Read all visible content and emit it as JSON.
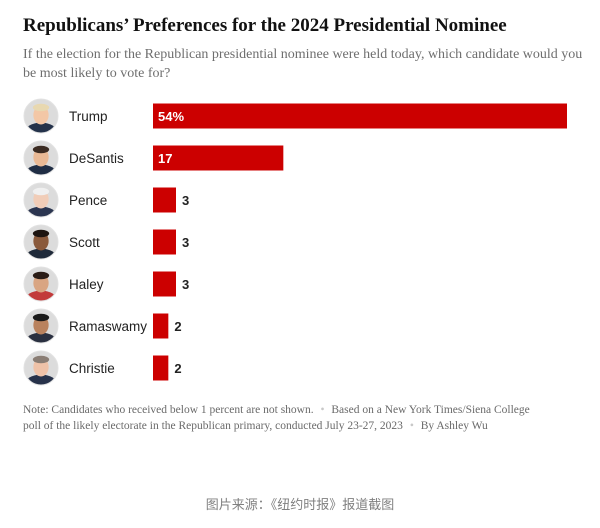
{
  "chart_data": {
    "type": "bar",
    "orientation": "horizontal",
    "title": "Republicans’ Preferences for the 2024 Presidential Nominee",
    "subtitle": "If the election for the Republican presidential nominee were held today, which candidate would you be most likely to vote for?",
    "categories": [
      "Trump",
      "DeSantis",
      "Pence",
      "Scott",
      "Haley",
      "Ramaswamy",
      "Christie"
    ],
    "values": [
      54,
      17,
      3,
      3,
      3,
      2,
      2
    ],
    "value_labels": [
      "54%",
      "17",
      "3",
      "3",
      "3",
      "2",
      "2"
    ],
    "xlim": [
      0,
      54
    ],
    "grid": false,
    "legend": "none",
    "bar_color": "#cc0000",
    "avatar_icons": [
      "trump-portrait-icon",
      "desantis-portrait-icon",
      "pence-portrait-icon",
      "scott-portrait-icon",
      "haley-portrait-icon",
      "ramaswamy-portrait-icon",
      "christie-portrait-icon"
    ]
  },
  "notes": {
    "note1": "Note: Candidates who received below 1 percent are not shown.",
    "separator": "•",
    "note2": "Based on a New York Times/Siena College poll of the likely electorate in the Republican primary, conducted July 23-27, 2023",
    "byline": "By Ashley Wu"
  },
  "caption": "图片来源：《纽约时报》报道截图"
}
